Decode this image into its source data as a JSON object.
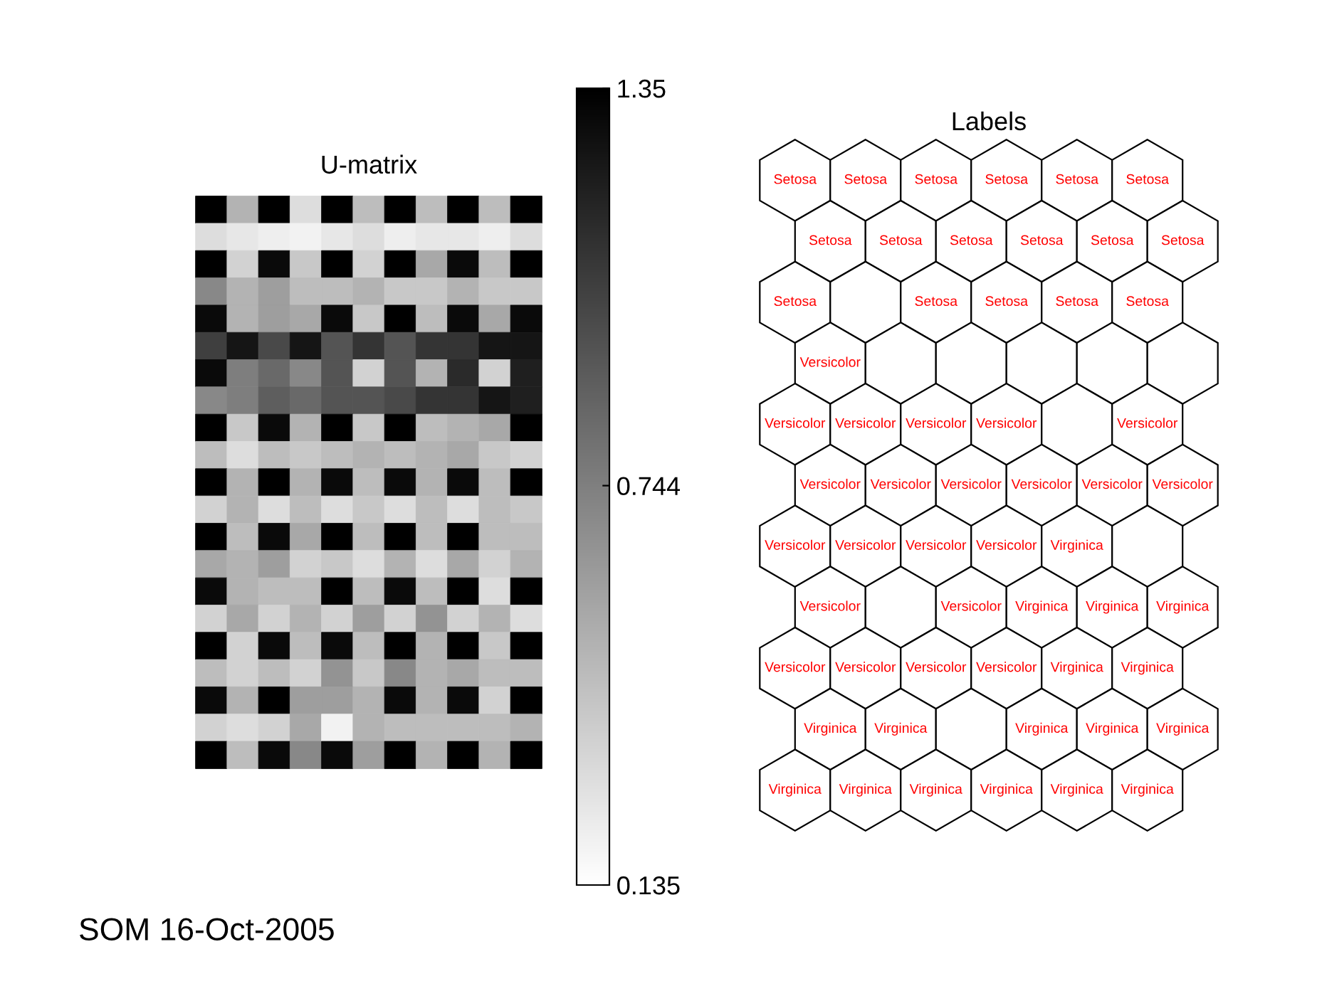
{
  "chart_data": [
    {
      "type": "heatmap",
      "title": "U-matrix",
      "categories": [
        null,
        null,
        null,
        null,
        null,
        null,
        null,
        null,
        null,
        null,
        null
      ],
      "y_categories": [
        null,
        null,
        null,
        null,
        null,
        null,
        null,
        null,
        null,
        null,
        null,
        null,
        null,
        null,
        null,
        null,
        null,
        null,
        null,
        null,
        null
      ],
      "cells": [
        [
          1.35,
          0.5,
          1.35,
          0.3,
          1.35,
          0.45,
          1.35,
          0.45,
          1.35,
          0.45,
          1.35
        ],
        [
          0.3,
          0.25,
          0.22,
          0.2,
          0.25,
          0.3,
          0.22,
          0.25,
          0.25,
          0.22,
          0.3
        ],
        [
          1.35,
          0.35,
          1.3,
          0.4,
          1.35,
          0.35,
          1.35,
          0.55,
          1.3,
          0.45,
          1.35
        ],
        [
          0.7,
          0.5,
          0.6,
          0.45,
          0.45,
          0.5,
          0.4,
          0.4,
          0.5,
          0.4,
          0.4
        ],
        [
          1.3,
          0.5,
          0.6,
          0.55,
          1.3,
          0.4,
          1.35,
          0.45,
          1.3,
          0.55,
          1.3
        ],
        [
          1.05,
          1.25,
          1.0,
          1.25,
          0.95,
          1.1,
          0.95,
          1.1,
          1.1,
          1.25,
          1.25
        ],
        [
          1.3,
          0.75,
          0.85,
          0.7,
          0.95,
          0.35,
          0.95,
          0.5,
          1.15,
          0.35,
          1.2
        ],
        [
          0.7,
          0.75,
          0.9,
          0.85,
          0.95,
          0.95,
          1.0,
          1.1,
          1.1,
          1.25,
          1.2
        ],
        [
          1.35,
          0.4,
          1.3,
          0.5,
          1.35,
          0.4,
          1.35,
          0.45,
          0.5,
          0.55,
          1.35
        ],
        [
          0.45,
          0.3,
          0.45,
          0.4,
          0.45,
          0.5,
          0.45,
          0.5,
          0.55,
          0.4,
          0.35
        ],
        [
          1.35,
          0.5,
          1.35,
          0.5,
          1.3,
          0.45,
          1.3,
          0.5,
          1.3,
          0.45,
          1.35
        ],
        [
          0.35,
          0.5,
          0.3,
          0.45,
          0.3,
          0.4,
          0.3,
          0.45,
          0.3,
          0.45,
          0.4
        ],
        [
          1.35,
          0.45,
          1.3,
          0.55,
          1.35,
          0.45,
          1.35,
          0.45,
          1.35,
          0.45,
          0.45
        ],
        [
          0.55,
          0.5,
          0.6,
          0.35,
          0.4,
          0.3,
          0.5,
          0.3,
          0.55,
          0.35,
          0.5
        ],
        [
          1.3,
          0.5,
          0.45,
          0.45,
          1.35,
          0.45,
          1.3,
          0.45,
          1.35,
          0.3,
          1.35
        ],
        [
          0.35,
          0.55,
          0.35,
          0.5,
          0.35,
          0.6,
          0.35,
          0.65,
          0.35,
          0.5,
          0.3
        ],
        [
          1.35,
          0.35,
          1.3,
          0.45,
          1.3,
          0.45,
          1.35,
          0.5,
          1.35,
          0.4,
          1.35
        ],
        [
          0.45,
          0.35,
          0.45,
          0.35,
          0.65,
          0.4,
          0.7,
          0.5,
          0.55,
          0.45,
          0.45
        ],
        [
          1.3,
          0.5,
          1.35,
          0.6,
          0.6,
          0.5,
          1.3,
          0.5,
          1.3,
          0.35,
          1.35
        ],
        [
          0.35,
          0.3,
          0.35,
          0.55,
          0.2,
          0.5,
          0.45,
          0.45,
          0.45,
          0.45,
          0.5
        ],
        [
          1.35,
          0.45,
          1.3,
          0.7,
          1.3,
          0.6,
          1.35,
          0.5,
          1.35,
          0.5,
          1.35
        ]
      ],
      "clim": [
        0.135,
        1.35
      ],
      "cticks": [
        0.135,
        0.744,
        1.35
      ],
      "annotations": [
        "SOM 16-Oct-2005"
      ]
    },
    {
      "type": "other",
      "title": "Labels",
      "cell_labels": [
        [
          "Setosa",
          "Setosa",
          "Setosa",
          "Setosa",
          "Setosa",
          "Setosa"
        ],
        [
          "Setosa",
          "Setosa",
          "Setosa",
          "Setosa",
          "Setosa",
          "Setosa"
        ],
        [
          "Setosa",
          null,
          "Setosa",
          "Setosa",
          "Setosa",
          "Setosa"
        ],
        [
          "Versicolor",
          null,
          null,
          null,
          null,
          null
        ],
        [
          "Versicolor",
          "Versicolor",
          "Versicolor",
          "Versicolor",
          null,
          "Versicolor"
        ],
        [
          "Versicolor",
          "Versicolor",
          "Versicolor",
          "Versicolor",
          "Versicolor",
          "Versicolor"
        ],
        [
          "Versicolor",
          "Versicolor",
          "Versicolor",
          "Versicolor",
          "Virginica",
          null
        ],
        [
          "Versicolor",
          null,
          "Versicolor",
          "Virginica",
          "Virginica",
          "Virginica"
        ],
        [
          "Versicolor",
          "Versicolor",
          "Versicolor",
          "Versicolor",
          "Virginica",
          "Virginica"
        ],
        [
          "Virginica",
          "Virginica",
          null,
          "Virginica",
          "Virginica",
          "Virginica"
        ],
        [
          "Virginica",
          "Virginica",
          "Virginica",
          "Virginica",
          "Virginica",
          "Virginica"
        ]
      ]
    }
  ]
}
